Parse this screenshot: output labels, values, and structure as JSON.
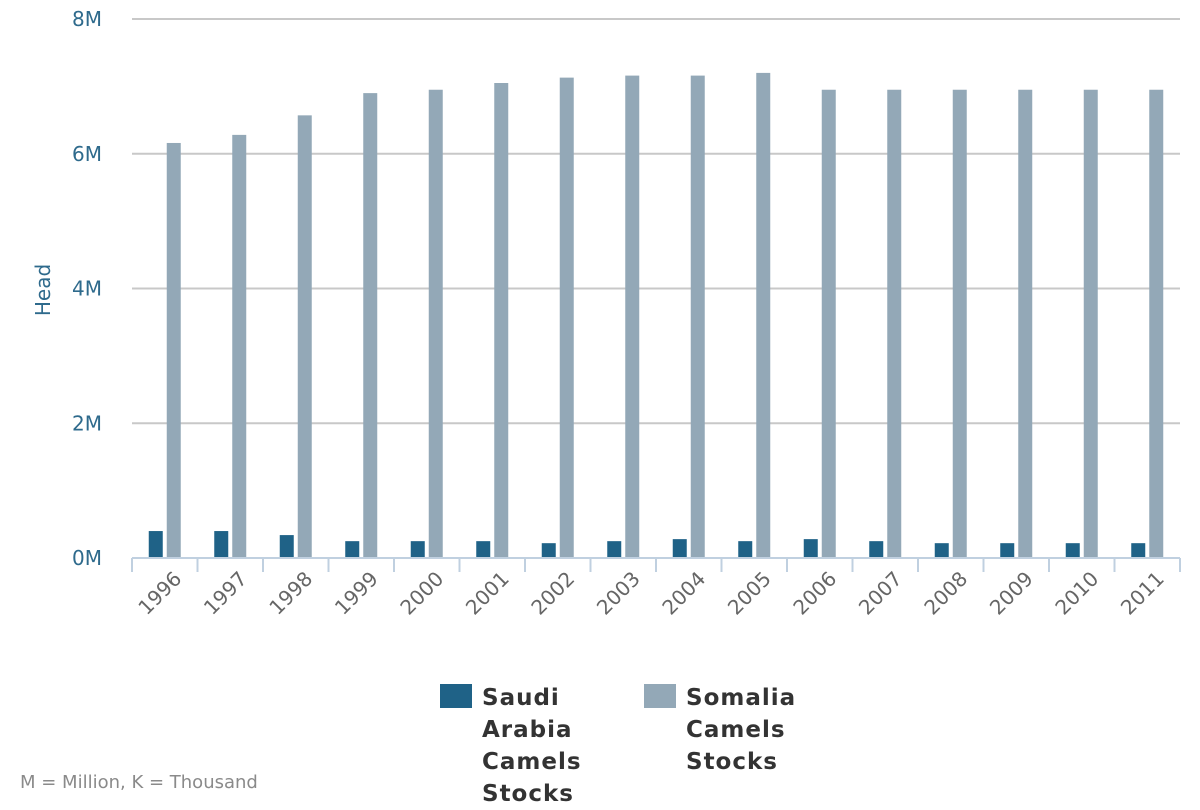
{
  "chart_data": {
    "type": "bar",
    "categories": [
      "1996",
      "1997",
      "1998",
      "1999",
      "2000",
      "2001",
      "2002",
      "2003",
      "2004",
      "2005",
      "2006",
      "2007",
      "2008",
      "2009",
      "2010",
      "2011"
    ],
    "series": [
      {
        "name": "Saudi Arabia Camels Stocks",
        "color": "#1f6287",
        "values": [
          400000,
          400000,
          340000,
          250000,
          250000,
          250000,
          220000,
          250000,
          280000,
          250000,
          280000,
          250000,
          220000,
          220000,
          220000,
          220000
        ]
      },
      {
        "name": "Somalia Camels Stocks",
        "color": "#93a8b7",
        "values": [
          6160000,
          6280000,
          6570000,
          6900000,
          6950000,
          7050000,
          7130000,
          7160000,
          7160000,
          7200000,
          6950000,
          6950000,
          6950000,
          6950000,
          6950000,
          6950000
        ]
      }
    ],
    "ylabel": "Head",
    "ylim": [
      0,
      8000000
    ],
    "yticks": [
      {
        "value": 0,
        "label": "0M"
      },
      {
        "value": 2000000,
        "label": "2M"
      },
      {
        "value": 4000000,
        "label": "4M"
      },
      {
        "value": 6000000,
        "label": "6M"
      },
      {
        "value": 8000000,
        "label": "8M"
      }
    ],
    "grid": true,
    "legend_position": "bottom-center",
    "footnote": "M = Million, K = Thousand"
  }
}
